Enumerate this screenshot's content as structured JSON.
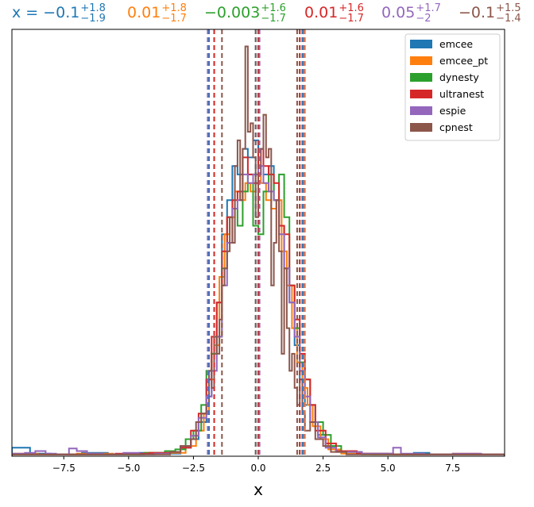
{
  "chart_data": {
    "type": "histogram",
    "xlabel": "x",
    "ylabel": "",
    "xlim": [
      -9.5,
      9.5
    ],
    "ylim": [
      0,
      0.5
    ],
    "x_ticks": [
      -7.5,
      -5.0,
      -2.5,
      0.0,
      2.5,
      5.0,
      7.5
    ],
    "x_tick_labels": [
      "−7.5",
      "−5.0",
      "−2.5",
      "0.0",
      "2.5",
      "5.0",
      "7.5"
    ],
    "y_ticks_visible": false,
    "grid": false,
    "legend_position": "top-right",
    "annotation": {
      "prefix": "x = ",
      "entries": [
        {
          "series": "emcee",
          "median": "−0.1",
          "plus": "+1.8",
          "minus": "−1.9",
          "color": "#1f77b4"
        },
        {
          "series": "emcee_pt",
          "median": "0.01",
          "plus": "+1.8",
          "minus": "−1.7",
          "color": "#ff7f0e"
        },
        {
          "series": "dynesty",
          "median": "−0.003",
          "plus": "+1.6",
          "minus": "−1.7",
          "color": "#2ca02c"
        },
        {
          "series": "ultranest",
          "median": "0.01",
          "plus": "+1.6",
          "minus": "−1.7",
          "color": "#d62728"
        },
        {
          "series": "espie",
          "median": "0.05",
          "plus": "+1.7",
          "minus": "−2",
          "color": "#9467bd"
        },
        {
          "series": "cpnest",
          "median": "−0.1",
          "plus": "+1.5",
          "minus": "−1.4",
          "color": "#8c564b"
        }
      ]
    },
    "series": [
      {
        "name": "emcee",
        "color": "#1f77b4",
        "quantiles": [
          -1.9,
          -0.1,
          1.7
        ],
        "bins": [
          [
            -9.5,
            0.01
          ],
          [
            -8.8,
            0.003
          ],
          [
            -8.0,
            0.002
          ],
          [
            -6.8,
            0.004
          ],
          [
            -5.8,
            0.002
          ],
          [
            -4.6,
            0.004
          ],
          [
            -3.6,
            0.003
          ],
          [
            -3.0,
            0.01
          ],
          [
            -2.6,
            0.02
          ],
          [
            -2.3,
            0.04
          ],
          [
            -2.0,
            0.07
          ],
          [
            -1.8,
            0.12
          ],
          [
            -1.6,
            0.18
          ],
          [
            -1.4,
            0.26
          ],
          [
            -1.2,
            0.3
          ],
          [
            -1.0,
            0.34
          ],
          [
            -0.8,
            0.33
          ],
          [
            -0.6,
            0.36
          ],
          [
            -0.4,
            0.35
          ],
          [
            -0.2,
            0.37
          ],
          [
            0.0,
            0.36
          ],
          [
            0.2,
            0.33
          ],
          [
            0.4,
            0.34
          ],
          [
            0.6,
            0.3
          ],
          [
            0.8,
            0.27
          ],
          [
            1.0,
            0.22
          ],
          [
            1.2,
            0.18
          ],
          [
            1.4,
            0.13
          ],
          [
            1.6,
            0.09
          ],
          [
            1.8,
            0.06
          ],
          [
            2.0,
            0.04
          ],
          [
            2.3,
            0.025
          ],
          [
            2.6,
            0.012
          ],
          [
            3.0,
            0.006
          ],
          [
            3.8,
            0.003
          ],
          [
            5.0,
            0.002
          ],
          [
            6.0,
            0.004
          ],
          [
            6.6,
            0.002
          ],
          [
            7.5,
            0.002
          ],
          [
            9.5,
            0
          ]
        ]
      },
      {
        "name": "emcee_pt",
        "color": "#ff7f0e",
        "quantiles": [
          -1.7,
          0.01,
          1.8
        ],
        "bins": [
          [
            -9.5,
            0.003
          ],
          [
            -8.5,
            0.002
          ],
          [
            -7.0,
            0.003
          ],
          [
            -5.6,
            0.002
          ],
          [
            -4.4,
            0.004
          ],
          [
            -3.4,
            0.004
          ],
          [
            -2.8,
            0.012
          ],
          [
            -2.4,
            0.03
          ],
          [
            -2.1,
            0.05
          ],
          [
            -1.9,
            0.09
          ],
          [
            -1.7,
            0.13
          ],
          [
            -1.5,
            0.21
          ],
          [
            -1.3,
            0.26
          ],
          [
            -1.1,
            0.28
          ],
          [
            -0.9,
            0.31
          ],
          [
            -0.7,
            0.3
          ],
          [
            -0.5,
            0.32
          ],
          [
            -0.3,
            0.31
          ],
          [
            -0.1,
            0.33
          ],
          [
            0.1,
            0.32
          ],
          [
            0.3,
            0.3
          ],
          [
            0.5,
            0.29
          ],
          [
            0.7,
            0.3
          ],
          [
            0.9,
            0.24
          ],
          [
            1.1,
            0.2
          ],
          [
            1.3,
            0.15
          ],
          [
            1.5,
            0.11
          ],
          [
            1.7,
            0.08
          ],
          [
            1.9,
            0.06
          ],
          [
            2.1,
            0.035
          ],
          [
            2.4,
            0.02
          ],
          [
            2.7,
            0.008
          ],
          [
            3.2,
            0.003
          ],
          [
            4.4,
            0.002
          ],
          [
            6.0,
            0.002
          ],
          [
            7.5,
            0.003
          ],
          [
            8.5,
            0.002
          ],
          [
            9.5,
            0
          ]
        ]
      },
      {
        "name": "dynesty",
        "color": "#2ca02c",
        "quantiles": [
          -1.7,
          -0.003,
          1.6
        ],
        "bins": [
          [
            -9.5,
            0.002
          ],
          [
            -8.5,
            0.002
          ],
          [
            -7.0,
            0.002
          ],
          [
            -5.5,
            0.002
          ],
          [
            -4.4,
            0.004
          ],
          [
            -3.6,
            0.006
          ],
          [
            -3.2,
            0.008
          ],
          [
            -2.8,
            0.02
          ],
          [
            -2.5,
            0.03
          ],
          [
            -2.2,
            0.06
          ],
          [
            -2.0,
            0.1
          ],
          [
            -1.8,
            0.12
          ],
          [
            -1.6,
            0.14
          ],
          [
            -1.4,
            0.22
          ],
          [
            -1.2,
            0.28
          ],
          [
            -1.0,
            0.29
          ],
          [
            -0.8,
            0.27
          ],
          [
            -0.6,
            0.31
          ],
          [
            -0.4,
            0.33
          ],
          [
            -0.2,
            0.27
          ],
          [
            0.0,
            0.26
          ],
          [
            0.2,
            0.31
          ],
          [
            0.4,
            0.33
          ],
          [
            0.6,
            0.3
          ],
          [
            0.8,
            0.33
          ],
          [
            1.0,
            0.28
          ],
          [
            1.2,
            0.2
          ],
          [
            1.4,
            0.15
          ],
          [
            1.6,
            0.11
          ],
          [
            1.8,
            0.09
          ],
          [
            2.0,
            0.06
          ],
          [
            2.2,
            0.04
          ],
          [
            2.5,
            0.025
          ],
          [
            2.8,
            0.012
          ],
          [
            3.2,
            0.005
          ],
          [
            4.0,
            0.002
          ],
          [
            5.5,
            0.002
          ],
          [
            7.0,
            0.002
          ],
          [
            8.5,
            0.002
          ],
          [
            9.5,
            0
          ]
        ]
      },
      {
        "name": "ultranest",
        "color": "#d62728",
        "quantiles": [
          -1.7,
          0.01,
          1.6
        ],
        "bins": [
          [
            -9.5,
            0.002
          ],
          [
            -8.5,
            0.002
          ],
          [
            -7.0,
            0.002
          ],
          [
            -5.5,
            0.003
          ],
          [
            -4.2,
            0.004
          ],
          [
            -3.4,
            0.005
          ],
          [
            -3.0,
            0.01
          ],
          [
            -2.6,
            0.03
          ],
          [
            -2.3,
            0.05
          ],
          [
            -2.0,
            0.09
          ],
          [
            -1.8,
            0.14
          ],
          [
            -1.6,
            0.18
          ],
          [
            -1.4,
            0.24
          ],
          [
            -1.2,
            0.28
          ],
          [
            -1.0,
            0.3
          ],
          [
            -0.8,
            0.31
          ],
          [
            -0.6,
            0.35
          ],
          [
            -0.4,
            0.33
          ],
          [
            -0.2,
            0.32
          ],
          [
            0.0,
            0.36
          ],
          [
            0.2,
            0.34
          ],
          [
            0.4,
            0.33
          ],
          [
            0.6,
            0.32
          ],
          [
            0.8,
            0.27
          ],
          [
            1.0,
            0.26
          ],
          [
            1.2,
            0.2
          ],
          [
            1.4,
            0.16
          ],
          [
            1.6,
            0.12
          ],
          [
            1.8,
            0.09
          ],
          [
            2.0,
            0.06
          ],
          [
            2.2,
            0.03
          ],
          [
            2.6,
            0.015
          ],
          [
            3.0,
            0.006
          ],
          [
            3.8,
            0.003
          ],
          [
            5.2,
            0.002
          ],
          [
            7.0,
            0.002
          ],
          [
            8.5,
            0.002
          ],
          [
            9.5,
            0
          ]
        ]
      },
      {
        "name": "espie",
        "color": "#9467bd",
        "quantiles": [
          -1.95,
          0.05,
          1.75
        ],
        "bins": [
          [
            -9.5,
            0.003
          ],
          [
            -9.0,
            0.004
          ],
          [
            -8.6,
            0.006
          ],
          [
            -8.2,
            0.003
          ],
          [
            -7.8,
            0.002
          ],
          [
            -7.3,
            0.009
          ],
          [
            -7.0,
            0.006
          ],
          [
            -6.6,
            0.003
          ],
          [
            -6.0,
            0.002
          ],
          [
            -5.2,
            0.004
          ],
          [
            -4.6,
            0.002
          ],
          [
            -4.0,
            0.003
          ],
          [
            -3.4,
            0.005
          ],
          [
            -3.0,
            0.012
          ],
          [
            -2.6,
            0.024
          ],
          [
            -2.3,
            0.045
          ],
          [
            -2.0,
            0.07
          ],
          [
            -1.8,
            0.1
          ],
          [
            -1.6,
            0.14
          ],
          [
            -1.4,
            0.2
          ],
          [
            -1.2,
            0.25
          ],
          [
            -1.0,
            0.29
          ],
          [
            -0.8,
            0.3
          ],
          [
            -0.6,
            0.33
          ],
          [
            -0.4,
            0.32
          ],
          [
            -0.2,
            0.33
          ],
          [
            0.0,
            0.34
          ],
          [
            0.2,
            0.32
          ],
          [
            0.4,
            0.31
          ],
          [
            0.6,
            0.3
          ],
          [
            0.8,
            0.26
          ],
          [
            1.0,
            0.22
          ],
          [
            1.2,
            0.18
          ],
          [
            1.4,
            0.14
          ],
          [
            1.6,
            0.1
          ],
          [
            1.8,
            0.07
          ],
          [
            2.0,
            0.04
          ],
          [
            2.3,
            0.022
          ],
          [
            2.6,
            0.01
          ],
          [
            3.0,
            0.005
          ],
          [
            4.0,
            0.003
          ],
          [
            5.2,
            0.01
          ],
          [
            5.5,
            0.003
          ],
          [
            6.4,
            0.002
          ],
          [
            7.5,
            0.003
          ],
          [
            8.6,
            0.002
          ],
          [
            9.5,
            0
          ]
        ]
      },
      {
        "name": "cpnest",
        "color": "#8c564b",
        "quantiles": [
          -1.4,
          -0.1,
          1.5
        ],
        "bins": [
          [
            -9.5,
            0.002
          ],
          [
            -8.5,
            0.002
          ],
          [
            -7.0,
            0.002
          ],
          [
            -5.5,
            0.002
          ],
          [
            -4.2,
            0.002
          ],
          [
            -3.4,
            0.005
          ],
          [
            -3.0,
            0.012
          ],
          [
            -2.6,
            0.02
          ],
          [
            -2.4,
            0.04
          ],
          [
            -2.2,
            0.05
          ],
          [
            -2.0,
            0.06
          ],
          [
            -1.9,
            0.1
          ],
          [
            -1.8,
            0.08
          ],
          [
            -1.7,
            0.14
          ],
          [
            -1.6,
            0.12
          ],
          [
            -1.5,
            0.16
          ],
          [
            -1.4,
            0.2
          ],
          [
            -1.3,
            0.22
          ],
          [
            -1.2,
            0.24
          ],
          [
            -1.1,
            0.28
          ],
          [
            -1.0,
            0.25
          ],
          [
            -0.9,
            0.34
          ],
          [
            -0.8,
            0.37
          ],
          [
            -0.7,
            0.3
          ],
          [
            -0.6,
            0.36
          ],
          [
            -0.5,
            0.48
          ],
          [
            -0.4,
            0.38
          ],
          [
            -0.3,
            0.39
          ],
          [
            -0.2,
            0.35
          ],
          [
            -0.1,
            0.28
          ],
          [
            0.0,
            0.33
          ],
          [
            0.1,
            0.36
          ],
          [
            0.2,
            0.4
          ],
          [
            0.3,
            0.35
          ],
          [
            0.4,
            0.36
          ],
          [
            0.5,
            0.2
          ],
          [
            0.6,
            0.25
          ],
          [
            0.7,
            0.3
          ],
          [
            0.8,
            0.24
          ],
          [
            0.9,
            0.12
          ],
          [
            1.0,
            0.22
          ],
          [
            1.1,
            0.15
          ],
          [
            1.2,
            0.1
          ],
          [
            1.3,
            0.12
          ],
          [
            1.4,
            0.08
          ],
          [
            1.5,
            0.06
          ],
          [
            1.6,
            0.09
          ],
          [
            1.7,
            0.05
          ],
          [
            1.8,
            0.03
          ],
          [
            2.0,
            0.04
          ],
          [
            2.2,
            0.02
          ],
          [
            2.5,
            0.012
          ],
          [
            2.8,
            0.005
          ],
          [
            3.4,
            0.002
          ],
          [
            5.0,
            0.002
          ],
          [
            7.0,
            0.002
          ],
          [
            8.5,
            0.002
          ],
          [
            9.5,
            0
          ]
        ]
      }
    ]
  }
}
